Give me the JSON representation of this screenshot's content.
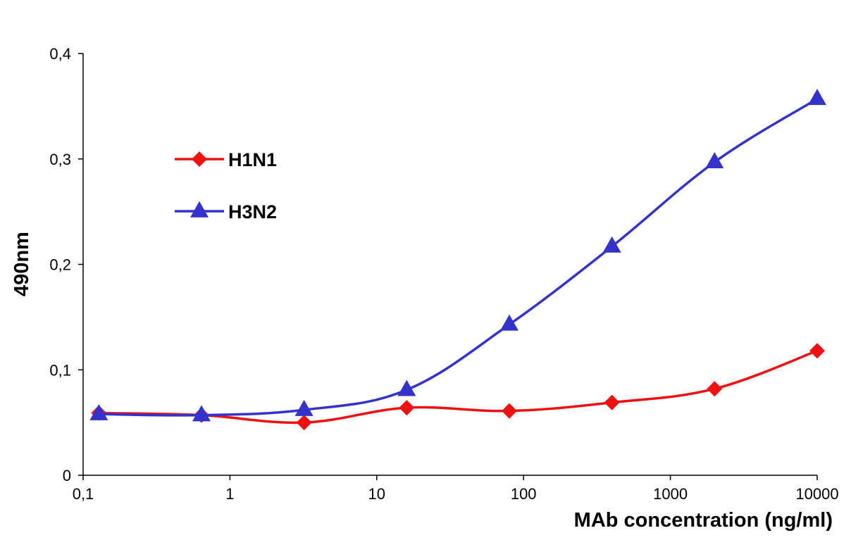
{
  "chart_data": {
    "type": "line",
    "title": "",
    "xlabel": "MAb concentration (ng/ml)",
    "ylabel": "490nm",
    "x_scale": "log",
    "xlim": [
      0.1,
      10000
    ],
    "ylim": [
      0,
      0.4
    ],
    "x_ticks": [
      0.1,
      1,
      10,
      100,
      1000,
      10000
    ],
    "x_tick_labels": [
      "0,1",
      "1",
      "10",
      "100",
      "1000",
      "10000"
    ],
    "y_ticks": [
      0,
      0.1,
      0.2,
      0.3,
      0.4
    ],
    "y_tick_labels": [
      "0",
      "0,1",
      "0,2",
      "0,3",
      "0,4"
    ],
    "grid": false,
    "legend_position": "upper-left",
    "x": [
      0.128,
      0.64,
      3.2,
      16,
      80,
      400,
      2000,
      10000
    ],
    "series": [
      {
        "name": "H1N1",
        "color": "#ee1111",
        "marker": "diamond",
        "values": [
          0.059,
          0.057,
          0.05,
          0.064,
          0.061,
          0.069,
          0.082,
          0.118
        ]
      },
      {
        "name": "H3N2",
        "color": "#3333cc",
        "marker": "triangle",
        "values": [
          0.058,
          0.057,
          0.062,
          0.081,
          0.143,
          0.217,
          0.297,
          0.357
        ]
      }
    ]
  }
}
